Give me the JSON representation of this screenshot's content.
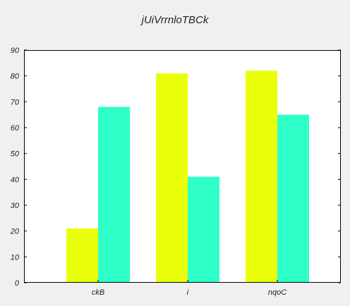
{
  "chart_data": {
    "type": "bar",
    "title": "jUiVrrnloTBCk",
    "categories": [
      "ckB",
      "i",
      "nqoC"
    ],
    "series": [
      {
        "values": [
          21,
          81,
          82
        ],
        "color": "#eaff0a"
      },
      {
        "values": [
          68,
          41,
          65
        ],
        "color": "#2effc9"
      }
    ],
    "ylim": [
      0,
      90
    ],
    "yticks": [
      0,
      10,
      20,
      30,
      40,
      50,
      60,
      70,
      80,
      90
    ],
    "xlabel": "",
    "ylabel": "",
    "grid": false,
    "legend": false
  }
}
